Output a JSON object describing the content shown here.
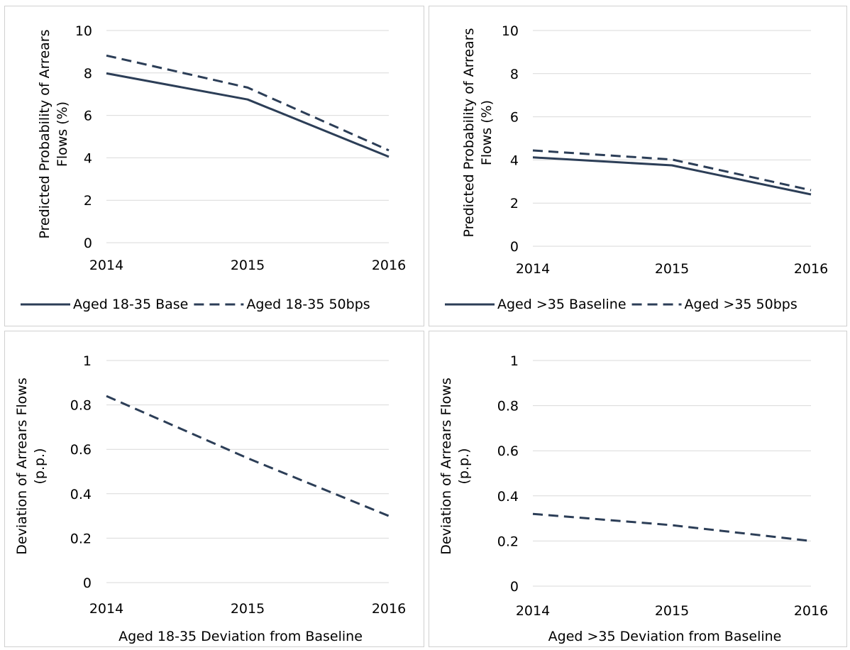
{
  "colors": {
    "series": "#2c3e57",
    "grid": "#d9d9d9",
    "border": "#d0d0d0"
  },
  "chart_data": [
    {
      "type": "line",
      "title": "",
      "xlabel": "",
      "ylabel_lines": [
        "Predicted Probability of Arrears",
        "Flows (%)"
      ],
      "x": [
        "2014",
        "2015",
        "2016"
      ],
      "ylim": [
        0,
        10
      ],
      "yticks": [
        0,
        2,
        4,
        6,
        8,
        10
      ],
      "ytick_labels": [
        "0",
        "2",
        "4",
        "6",
        "8",
        "10"
      ],
      "grid": true,
      "legend": "bottom",
      "series": [
        {
          "name": "Aged 18-35 Base",
          "style": "solid",
          "values": [
            7.98,
            6.75,
            4.05
          ]
        },
        {
          "name": "Aged 18-35 50bps",
          "style": "dashed",
          "values": [
            8.82,
            7.31,
            4.35
          ]
        }
      ]
    },
    {
      "type": "line",
      "title": "",
      "xlabel": "",
      "ylabel_lines": [
        "Predicted Probability of Arrears",
        "Flows (%)"
      ],
      "x": [
        "2014",
        "2015",
        "2016"
      ],
      "ylim": [
        0,
        10
      ],
      "yticks": [
        0,
        2,
        4,
        6,
        8,
        10
      ],
      "ytick_labels": [
        "0",
        "2",
        "4",
        "6",
        "8",
        "10"
      ],
      "grid": true,
      "legend": "bottom",
      "series": [
        {
          "name": "Aged >35 Baseline",
          "style": "solid",
          "values": [
            4.12,
            3.75,
            2.4
          ]
        },
        {
          "name": "Aged >35 50bps",
          "style": "dashed",
          "values": [
            4.44,
            4.02,
            2.6
          ]
        }
      ]
    },
    {
      "type": "line",
      "title": "",
      "xlabel": "Aged 18-35 Deviation from Baseline",
      "ylabel_lines": [
        "Deviation of Arrears Flows",
        "(p.p.)"
      ],
      "x": [
        "2014",
        "2015",
        "2016"
      ],
      "ylim": [
        0,
        1
      ],
      "yticks": [
        0,
        0.2,
        0.4,
        0.6,
        0.8,
        1
      ],
      "ytick_labels": [
        "0",
        "0.2",
        "0.4",
        "0.6",
        "0.8",
        "1"
      ],
      "grid": true,
      "legend": "none",
      "series": [
        {
          "style": "dashed",
          "values": [
            0.84,
            0.56,
            0.3
          ]
        }
      ]
    },
    {
      "type": "line",
      "title": "",
      "xlabel": "Aged >35 Deviation from Baseline",
      "ylabel_lines": [
        "Deviation of Arrears Flows",
        "(p.p.)"
      ],
      "x": [
        "2014",
        "2015",
        "2016"
      ],
      "ylim": [
        0,
        1
      ],
      "yticks": [
        0,
        0.2,
        0.4,
        0.6,
        0.8,
        1
      ],
      "ytick_labels": [
        "0",
        "0.2",
        "0.4",
        "0.6",
        "0.8",
        "1"
      ],
      "grid": true,
      "legend": "none",
      "series": [
        {
          "style": "dashed",
          "values": [
            0.32,
            0.27,
            0.2
          ]
        }
      ]
    }
  ]
}
